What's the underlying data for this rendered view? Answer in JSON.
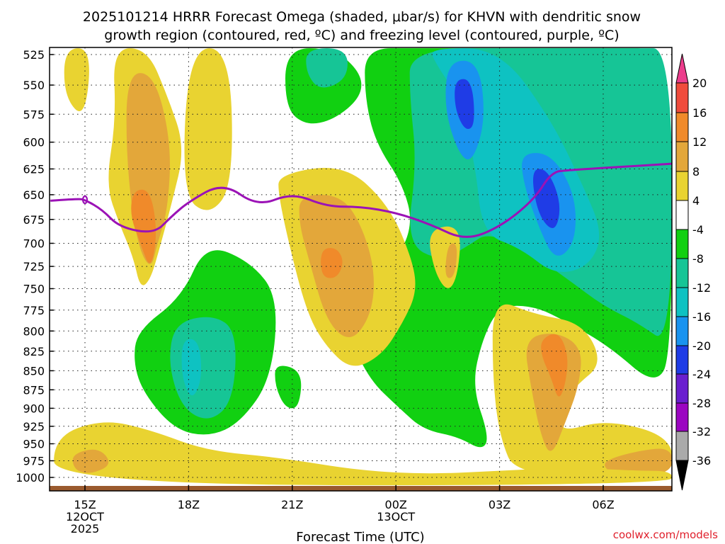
{
  "chart_data": {
    "type": "heatmap",
    "title_line1": "2025101214 HRRR Forecast Omega (shaded, μbar/s) for KHVN with dendritic snow",
    "title_line2": "growth region (contoured, red, ºC) and freezing level (contoured, purple, ºC)",
    "xlabel": "Forecast Time (UTC)",
    "credit": "coolwx.com/models",
    "x_ticks": [
      {
        "t": 0,
        "lines": [
          "15Z",
          "12OCT",
          "2025"
        ]
      },
      {
        "t": 3,
        "lines": [
          "18Z"
        ]
      },
      {
        "t": 6,
        "lines": [
          "21Z"
        ]
      },
      {
        "t": 9,
        "lines": [
          "00Z",
          "13OCT"
        ]
      },
      {
        "t": 12,
        "lines": [
          "03Z"
        ]
      },
      {
        "t": 15,
        "lines": [
          "06Z"
        ]
      }
    ],
    "xlim": [
      -1,
      17
    ],
    "y_ticks": [
      525,
      550,
      575,
      600,
      625,
      650,
      675,
      700,
      725,
      750,
      775,
      800,
      825,
      850,
      875,
      900,
      925,
      950,
      975,
      1000
    ],
    "ylim": [
      515,
      1012
    ],
    "y_scale": "log",
    "colorbar": {
      "labels": [
        20,
        16,
        12,
        8,
        4,
        -4,
        -8,
        -12,
        -16,
        -20,
        -24,
        -28,
        -32,
        -36
      ],
      "bands": [
        {
          "from": 20,
          "to": 24,
          "color": "#ec3d8c"
        },
        {
          "from": 16,
          "to": 20,
          "color": "#f04b3c"
        },
        {
          "from": 12,
          "to": 16,
          "color": "#f08a2a"
        },
        {
          "from": 8,
          "to": 12,
          "color": "#e3a73a"
        },
        {
          "from": 4,
          "to": 8,
          "color": "#e9d331"
        },
        {
          "from": -4,
          "to": 4,
          "color": "#ffffff"
        },
        {
          "from": -8,
          "to": -4,
          "color": "#11d011"
        },
        {
          "from": -12,
          "to": -8,
          "color": "#16c596"
        },
        {
          "from": -16,
          "to": -12,
          "color": "#0ec2c2"
        },
        {
          "from": -20,
          "to": -16,
          "color": "#1993ef"
        },
        {
          "from": -24,
          "to": -20,
          "color": "#1f3ce6"
        },
        {
          "from": -28,
          "to": -24,
          "color": "#6a1fcf"
        },
        {
          "from": -32,
          "to": -28,
          "color": "#9b06c1"
        },
        {
          "from": -36,
          "to": -32,
          "color": "#aaaaaa"
        },
        {
          "from": -40,
          "to": -36,
          "color": "#000000"
        }
      ]
    },
    "freezing_level": {
      "color": "#9b12b6",
      "x": [
        -1,
        -0.2,
        0,
        0.5,
        1,
        2,
        2.5,
        3,
        4,
        5,
        6,
        7,
        8,
        9,
        10,
        11,
        12,
        13,
        13.5,
        14,
        17
      ],
      "y": [
        656,
        654,
        655,
        665,
        683,
        690,
        672,
        657,
        638,
        662,
        648,
        662,
        662,
        668,
        680,
        697,
        683,
        655,
        628,
        626,
        620
      ]
    },
    "omega_areas": [
      {
        "level": 4,
        "x": [
          -0.6,
          0.2,
          0.0,
          -0.6
        ],
        "y": [
          520,
          520,
          580,
          560
        ]
      },
      {
        "level": 4,
        "x": [
          0.8,
          1.8,
          2.4,
          2.9,
          2.5,
          2.2,
          1.9,
          1.6,
          1.4,
          1.0,
          0.6,
          0.9
        ],
        "y": [
          520,
          520,
          560,
          605,
          660,
          700,
          740,
          750,
          715,
          680,
          640,
          580
        ]
      },
      {
        "level": 8,
        "x": [
          1.2,
          2.0,
          2.5,
          2.4,
          2.1,
          1.9,
          1.5,
          1.2
        ],
        "y": [
          540,
          540,
          600,
          665,
          700,
          730,
          700,
          620
        ]
      },
      {
        "level": 12,
        "x": [
          1.4,
          1.9,
          2.1,
          1.9,
          1.6,
          1.3
        ],
        "y": [
          645,
          645,
          690,
          730,
          700,
          670
        ]
      },
      {
        "level": 4,
        "x": [
          3.0,
          4.2,
          4.3,
          3.6,
          2.8
        ],
        "y": [
          520,
          520,
          640,
          672,
          650
        ]
      },
      {
        "level": 4,
        "x": [
          5.6,
          7.5,
          8.8,
          9.5,
          9.6,
          9.2,
          8.6,
          7.7,
          6.9,
          6.4,
          5.9,
          5.6
        ],
        "y": [
          630,
          620,
          660,
          720,
          755,
          790,
          830,
          850,
          815,
          775,
          700,
          650
        ]
      },
      {
        "level": 8,
        "x": [
          6.2,
          7.4,
          8.0,
          8.4,
          8.3,
          7.7,
          7.0,
          6.5,
          6.2
        ],
        "y": [
          650,
          650,
          680,
          730,
          780,
          815,
          790,
          720,
          680
        ]
      },
      {
        "level": 12,
        "x": [
          6.9,
          7.3,
          7.5,
          7.3,
          6.9,
          6.8
        ],
        "y": [
          705,
          705,
          720,
          738,
          738,
          720
        ]
      },
      {
        "level": 4,
        "x": [
          9.9,
          10.9,
          10.8,
          10.5,
          10.1
        ],
        "y": [
          685,
          680,
          735,
          755,
          730
        ]
      },
      {
        "level": 8,
        "x": [
          10.5,
          10.8,
          10.7,
          10.4
        ],
        "y": [
          700,
          700,
          738,
          738
        ]
      },
      {
        "level": 4,
        "x": [
          11.8,
          13.0,
          14.4,
          15.0,
          14.2,
          13.8,
          13.7,
          15.1,
          17.0,
          17.0,
          12.5,
          12.0,
          11.8
        ],
        "y": [
          760,
          780,
          790,
          840,
          870,
          895,
          935,
          915,
          940,
          1000,
          1000,
          940,
          860
        ]
      },
      {
        "level": 8,
        "x": [
          12.7,
          13.6,
          14.4,
          14.3,
          13.9,
          13.5,
          13.2,
          12.9
        ],
        "y": [
          810,
          800,
          820,
          870,
          920,
          970,
          940,
          870
        ]
      },
      {
        "level": 12,
        "x": [
          13.2,
          13.7,
          14.0,
          13.9,
          13.7,
          13.5,
          13.2
        ],
        "y": [
          810,
          800,
          830,
          870,
          890,
          860,
          830
        ]
      },
      {
        "level": 8,
        "x": [
          15.0,
          16.0,
          17.0,
          17.0,
          15.6,
          15.1
        ],
        "y": [
          975,
          960,
          955,
          995,
          998,
          990
        ]
      },
      {
        "level": 4,
        "x": [
          -0.9,
          0.5,
          1.9,
          3.5,
          5.6,
          8.0,
          10.0,
          12.0,
          14.0,
          16.0,
          17.0,
          17.0,
          -0.9
        ],
        "y": [
          940,
          915,
          930,
          960,
          970,
          990,
          995,
          990,
          985,
          990,
          990,
          1012,
          1012
        ]
      },
      {
        "level": 8,
        "x": [
          -0.4,
          0.4,
          0.8,
          0.2,
          -0.3
        ],
        "y": [
          965,
          955,
          980,
          995,
          990
        ]
      }
    ],
    "omega_negative_areas": [
      {
        "level": -8,
        "x": [
          8.1,
          9.6,
          11.0,
          12.0,
          12.5,
          13.5,
          15.0,
          17.0,
          17.0,
          16.5,
          15.2,
          14.0,
          13.0,
          12.0,
          11.5,
          11.2,
          11.7,
          11.5,
          10.8,
          9.8,
          9.1,
          8.2,
          7.6,
          7.8,
          9.0,
          9.5,
          9.2,
          8.4,
          8.1
        ],
        "y": [
          520,
          520,
          520,
          520,
          520,
          520,
          520,
          520,
          830,
          870,
          820,
          790,
          770,
          770,
          810,
          870,
          940,
          960,
          940,
          930,
          900,
          860,
          800,
          760,
          720,
          680,
          640,
          600,
          560
        ]
      },
      {
        "level": -12,
        "x": [
          9.4,
          13.0,
          15.9,
          17.0,
          17.0,
          16.0,
          15.0,
          14.0,
          12.5,
          11.6,
          11.2,
          10.3,
          9.3,
          9.6,
          9.4
        ],
        "y": [
          520,
          520,
          520,
          520,
          820,
          790,
          770,
          740,
          700,
          690,
          700,
          720,
          700,
          620,
          560
        ]
      },
      {
        "level": -16,
        "x": [
          10.0,
          12.0,
          13.5,
          14.4,
          15.0,
          14.6,
          13.6,
          12.6,
          11.5,
          11.3,
          10.8,
          10.1
        ],
        "y": [
          520,
          520,
          580,
          640,
          690,
          725,
          735,
          705,
          690,
          620,
          560,
          530
        ]
      },
      {
        "level": -20,
        "x": [
          10.5,
          11.4,
          11.6,
          11.2,
          10.8,
          10.4
        ],
        "y": [
          530,
          530,
          580,
          620,
          610,
          570
        ]
      },
      {
        "level": -20,
        "x": [
          12.6,
          13.5,
          14.2,
          14.2,
          13.6,
          13.1,
          12.7
        ],
        "y": [
          610,
          610,
          650,
          700,
          720,
          680,
          640
        ]
      },
      {
        "level": -24,
        "x": [
          10.7,
          11.2,
          11.3,
          11.0,
          10.7
        ],
        "y": [
          545,
          545,
          585,
          590,
          570
        ]
      },
      {
        "level": -24,
        "x": [
          12.9,
          13.4,
          13.8,
          13.6,
          13.1
        ],
        "y": [
          625,
          625,
          660,
          690,
          670
        ]
      },
      {
        "level": -8,
        "x": [
          1.5,
          2.8,
          3.5,
          4.8,
          5.6,
          5.4,
          4.5,
          3.6,
          2.6,
          1.7,
          1.4
        ],
        "y": [
          800,
          760,
          700,
          720,
          760,
          860,
          920,
          940,
          930,
          880,
          840
        ]
      },
      {
        "level": -12,
        "x": [
          2.6,
          3.7,
          4.4,
          4.3,
          3.6,
          2.8,
          2.4
        ],
        "y": [
          790,
          780,
          800,
          890,
          920,
          900,
          840
        ]
      },
      {
        "level": -16,
        "x": [
          2.8,
          3.3,
          3.4,
          3.1,
          2.8
        ],
        "y": [
          810,
          810,
          860,
          890,
          860
        ]
      },
      {
        "level": -8,
        "x": [
          5.5,
          6.3,
          6.2,
          5.8,
          5.5
        ],
        "y": [
          840,
          850,
          900,
          900,
          870
        ]
      },
      {
        "level": -8,
        "x": [
          5.8,
          7.2,
          8.0,
          8.0,
          7.2,
          6.4,
          5.8
        ],
        "y": [
          520,
          520,
          540,
          560,
          580,
          585,
          570
        ]
      },
      {
        "level": -12,
        "x": [
          6.4,
          7.6,
          7.6,
          6.8,
          6.4
        ],
        "y": [
          520,
          520,
          545,
          555,
          540
        ]
      }
    ]
  }
}
